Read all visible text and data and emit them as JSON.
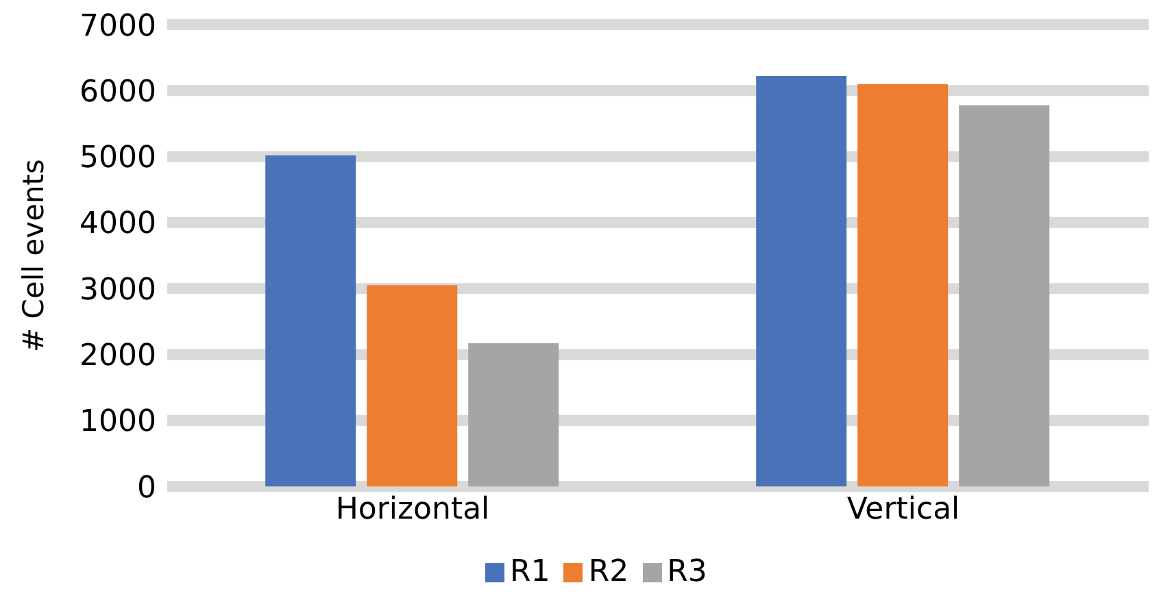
{
  "chart_data": {
    "type": "bar",
    "ylabel": "# Cell events",
    "categories": [
      "Horizontal",
      "Vertical"
    ],
    "series": [
      {
        "name": "R1",
        "color": "#4a72b8",
        "values": [
          5020,
          6220
        ]
      },
      {
        "name": "R2",
        "color": "#ed7d31",
        "values": [
          3050,
          6100
        ]
      },
      {
        "name": "R3",
        "color": "#a5a5a5",
        "values": [
          2170,
          5780
        ]
      }
    ],
    "ylim": [
      0,
      7000
    ],
    "yticks": [
      0,
      1000,
      2000,
      3000,
      4000,
      5000,
      6000,
      7000
    ],
    "grid": "y",
    "legend": "bottom"
  }
}
